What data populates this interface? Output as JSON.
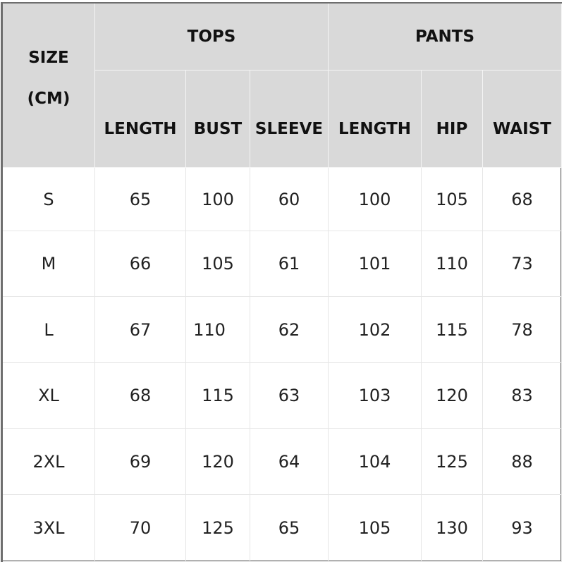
{
  "header": {
    "size_label_line1": "SIZE",
    "size_label_line2": "(CM)",
    "groups": [
      "TOPS",
      "PANTS"
    ],
    "columns": [
      "LENGTH",
      "BUST",
      "SLEEVE",
      "LENGTH",
      "HIP",
      "WAIST"
    ]
  },
  "rows": [
    {
      "size": "S",
      "values": [
        "65",
        "100",
        "60",
        "100",
        "105",
        "68"
      ]
    },
    {
      "size": "M",
      "values": [
        "66",
        "105",
        "61",
        "101",
        "110",
        "73"
      ]
    },
    {
      "size": "L",
      "values": [
        "67",
        "110",
        "62",
        "102",
        "115",
        "78"
      ]
    },
    {
      "size": "XL",
      "values": [
        "68",
        "115",
        "63",
        "103",
        "120",
        "83"
      ]
    },
    {
      "size": "2XL",
      "values": [
        "69",
        "120",
        "64",
        "104",
        "125",
        "88"
      ]
    },
    {
      "size": "3XL",
      "values": [
        "70",
        "125",
        "65",
        "105",
        "130",
        "93"
      ]
    }
  ],
  "colors": {
    "header_bg": "#d9d9d9",
    "border": "#6e6e6e"
  }
}
